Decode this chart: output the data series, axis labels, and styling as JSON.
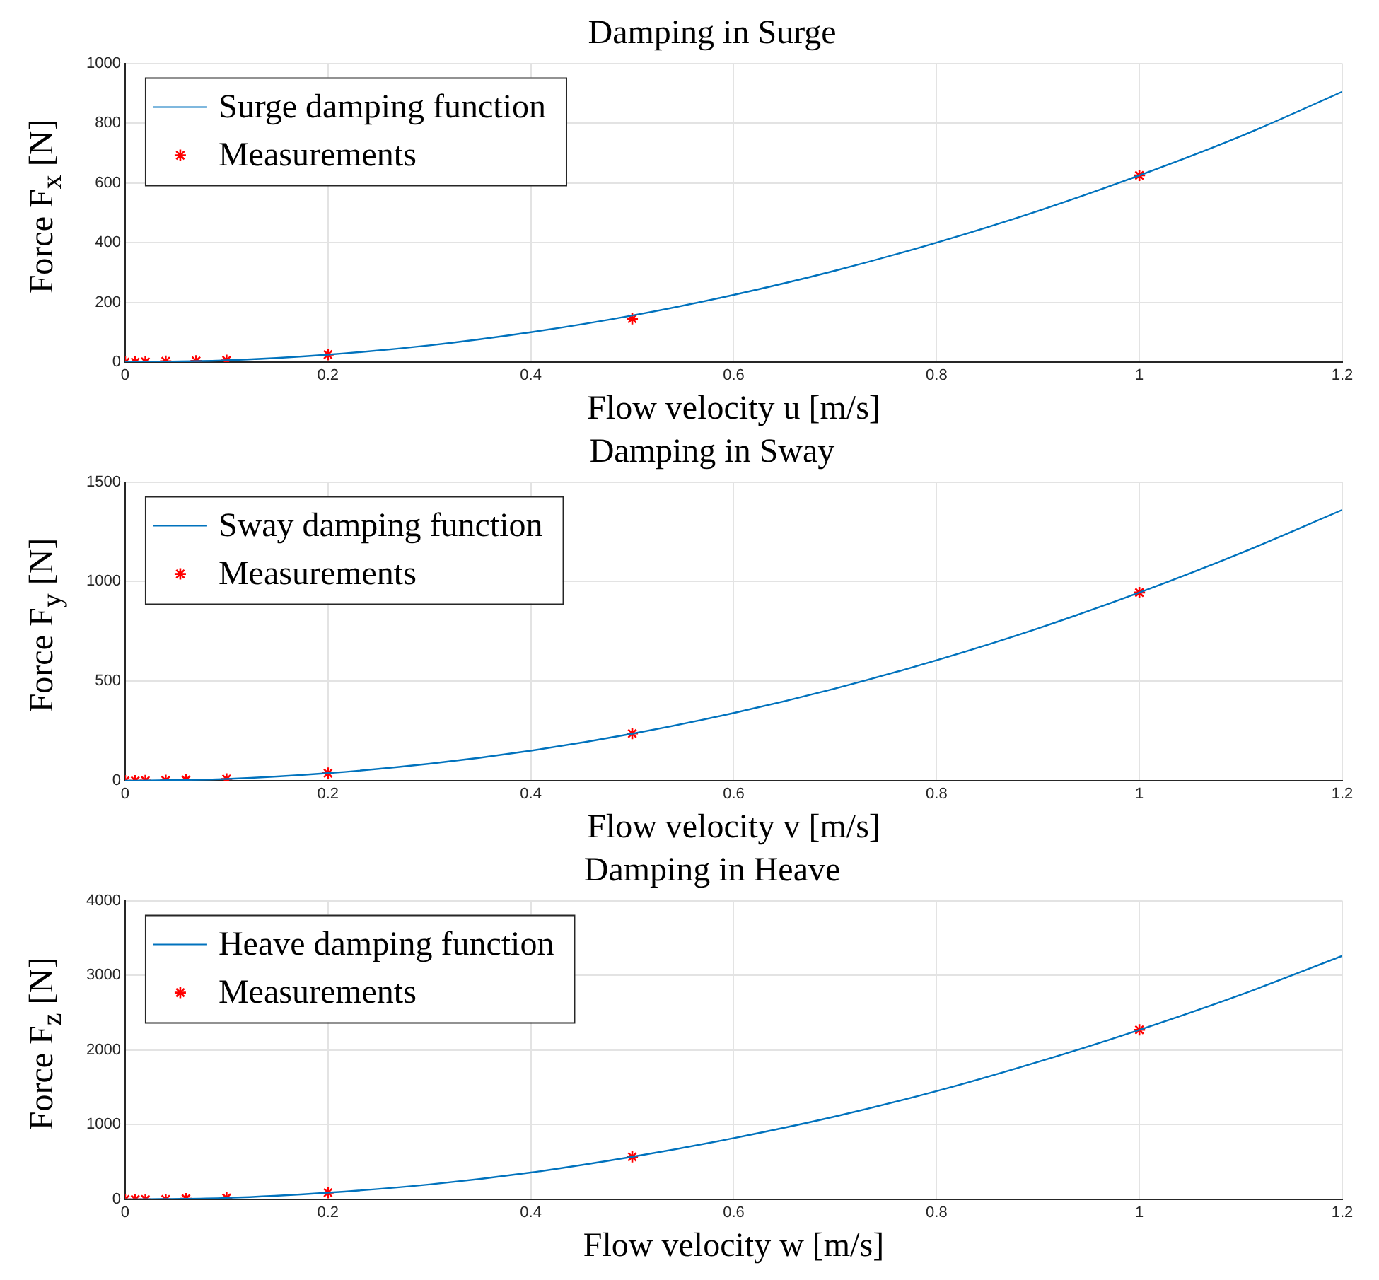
{
  "chart_data": [
    {
      "type": "line",
      "title": "Damping in Surge",
      "xlabel": "Flow velocity u [m/s]",
      "ylabel": "Force F$_{x}$ [N]",
      "xlim": [
        0,
        1.2
      ],
      "xticks": [
        0,
        0.2,
        0.4,
        0.6,
        0.8,
        1,
        1.2
      ],
      "ylim": [
        0,
        1000
      ],
      "yticks": [
        0,
        200,
        400,
        600,
        800,
        1000
      ],
      "grid": true,
      "legend": "top left",
      "series": [
        {
          "name": "Surge damping function",
          "color": "#0072bd",
          "line_style": "solid",
          "x": [
            0,
            0.1,
            0.2,
            0.3,
            0.4,
            0.5,
            0.6,
            0.7,
            0.8,
            0.9,
            1,
            1.1,
            1.2
          ],
          "values": [
            0,
            6,
            25,
            56,
            100,
            156,
            225,
            306,
            400,
            506,
            625,
            756,
            905
          ]
        },
        {
          "name": "Measurements",
          "type": "scatter",
          "marker": "cross",
          "color": "#ff0000",
          "x": [
            0,
            0.01,
            0.02,
            0.04,
            0.07,
            0.1,
            0.2,
            0.5,
            1
          ],
          "values": [
            0,
            0,
            1,
            3,
            4,
            6,
            25,
            145,
            625
          ]
        }
      ]
    },
    {
      "type": "line",
      "title": "Damping in Sway",
      "xlabel": "Flow velocity v [m/s]",
      "ylabel": "Force F$_{y}$ [N]",
      "xlim": [
        0,
        1.2
      ],
      "xticks": [
        0,
        0.2,
        0.4,
        0.6,
        0.8,
        1,
        1.2
      ],
      "ylim": [
        0,
        1500
      ],
      "yticks": [
        0,
        500,
        1000,
        1500
      ],
      "grid": true,
      "legend": "top left",
      "series": [
        {
          "name": "Sway damping function",
          "color": "#0072bd",
          "line_style": "solid",
          "x": [
            0,
            0.1,
            0.2,
            0.3,
            0.4,
            0.5,
            0.6,
            0.7,
            0.8,
            0.9,
            1,
            1.1,
            1.2
          ],
          "values": [
            0,
            9,
            38,
            85,
            151,
            236,
            340,
            463,
            605,
            765,
            945,
            1143,
            1360
          ]
        },
        {
          "name": "Measurements",
          "type": "scatter",
          "marker": "cross",
          "color": "#ff0000",
          "x": [
            0,
            0.01,
            0.02,
            0.04,
            0.06,
            0.1,
            0.2,
            0.5,
            1
          ],
          "values": [
            0,
            0,
            1,
            2,
            4,
            9,
            38,
            237,
            945
          ]
        }
      ]
    },
    {
      "type": "line",
      "title": "Damping in Heave",
      "xlabel": "Flow velocity w [m/s]",
      "ylabel": "Force F$_{z}$ [N]",
      "xlim": [
        0,
        1.2
      ],
      "xticks": [
        0,
        0.2,
        0.4,
        0.6,
        0.8,
        1,
        1.2
      ],
      "ylim": [
        0,
        4000
      ],
      "yticks": [
        0,
        1000,
        2000,
        3000,
        4000
      ],
      "grid": true,
      "legend": "top left",
      "series": [
        {
          "name": "Heave damping function",
          "color": "#0072bd",
          "line_style": "solid",
          "x": [
            0,
            0.1,
            0.2,
            0.3,
            0.4,
            0.5,
            0.6,
            0.7,
            0.8,
            0.9,
            1,
            1.1,
            1.2
          ],
          "values": [
            0,
            20,
            90,
            200,
            360,
            570,
            820,
            1110,
            1450,
            1840,
            2270,
            2740,
            3260
          ]
        },
        {
          "name": "Measurements",
          "type": "scatter",
          "marker": "cross",
          "color": "#ff0000",
          "x": [
            0,
            0.01,
            0.02,
            0.04,
            0.06,
            0.1,
            0.2,
            0.5,
            1
          ],
          "values": [
            0,
            0,
            0,
            0,
            10,
            20,
            90,
            570,
            2270
          ]
        }
      ]
    }
  ]
}
